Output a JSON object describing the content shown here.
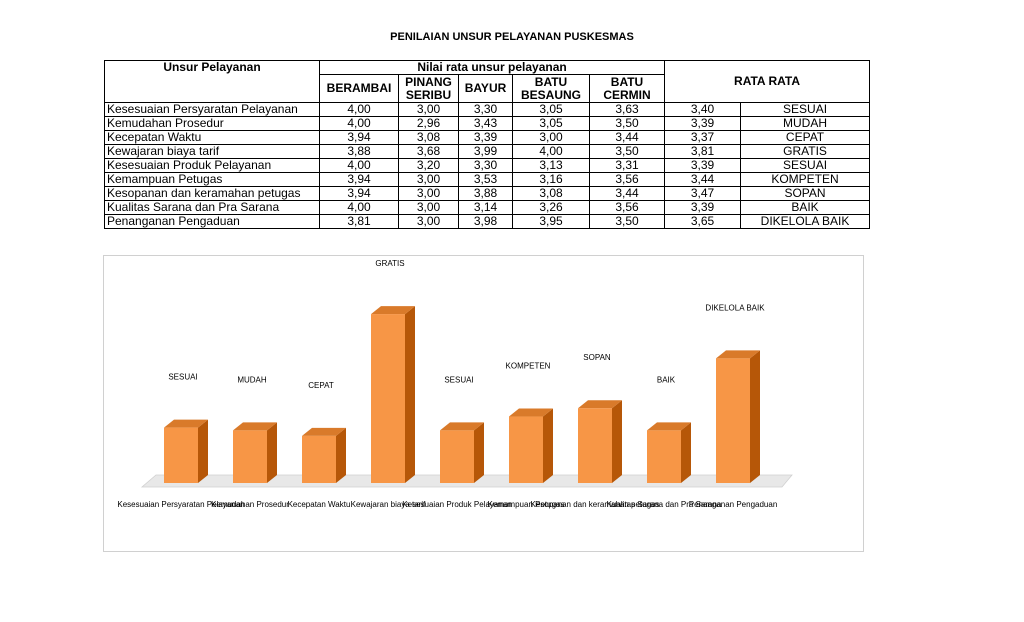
{
  "title": "PENILAIAN UNSUR PELAYANAN PUSKESMAS",
  "table": {
    "header_unsur": "Unsur Pelayanan",
    "header_group": "Nilai rata unsur pelayanan",
    "header_rata": "RATA RATA",
    "columns": [
      "BERAMBAI",
      "PINANG SERIBU",
      "BAYUR",
      "BATU BESAUNG",
      "BATU CERMIN"
    ],
    "rows": [
      {
        "name": "Kesesuaian Persyaratan Pelayanan",
        "values": [
          "4,00",
          "3,00",
          "3,30",
          "3,05",
          "3,63"
        ],
        "avg": "3,40",
        "label": "SESUAI"
      },
      {
        "name": "Kemudahan Prosedur",
        "values": [
          "4,00",
          "2,96",
          "3,43",
          "3,05",
          "3,50"
        ],
        "avg": "3,39",
        "label": "MUDAH"
      },
      {
        "name": "Kecepatan Waktu",
        "values": [
          "3,94",
          "3,08",
          "3,39",
          "3,00",
          "3,44"
        ],
        "avg": "3,37",
        "label": "CEPAT"
      },
      {
        "name": "Kewajaran biaya tarif",
        "values": [
          "3,88",
          "3,68",
          "3,99",
          "4,00",
          "3,50"
        ],
        "avg": "3,81",
        "label": "GRATIS"
      },
      {
        "name": "Kesesuaian Produk Pelayanan",
        "values": [
          "4,00",
          "3,20",
          "3,30",
          "3,13",
          "3,31"
        ],
        "avg": "3,39",
        "label": "SESUAI"
      },
      {
        "name": "Kemampuan Petugas",
        "values": [
          "3,94",
          "3,00",
          "3,53",
          "3,16",
          "3,56"
        ],
        "avg": "3,44",
        "label": "KOMPETEN"
      },
      {
        "name": "Kesopanan dan keramahan petugas",
        "values": [
          "3,94",
          "3,00",
          "3,88",
          "3,08",
          "3,44"
        ],
        "avg": "3,47",
        "label": "SOPAN"
      },
      {
        "name": "Kualitas Sarana dan Pra Sarana",
        "values": [
          "4,00",
          "3,00",
          "3,14",
          "3,26",
          "3,56"
        ],
        "avg": "3,39",
        "label": "BAIK"
      },
      {
        "name": "Penanganan Pengaduan",
        "values": [
          "3,81",
          "3,00",
          "3,98",
          "3,95",
          "3,50"
        ],
        "avg": "3,65",
        "label": "DIKELOLA BAIK"
      }
    ]
  },
  "chart_data": {
    "type": "bar",
    "categories": [
      "Kesesuaian Persyaratan Pelayanan",
      "Kemudahan Prosedur",
      "Kecepatan Waktu",
      "Kewajaran biaya tarif",
      "Kesesuaian Produk Pelayanan",
      "Kemampuan Petugas",
      "Kesopanan dan keramahan petugas",
      "Kualitas Sarana dan Pra Sarana",
      "Penanganan Pengaduan"
    ],
    "values": [
      3.4,
      3.39,
      3.37,
      3.81,
      3.39,
      3.44,
      3.47,
      3.39,
      3.65
    ],
    "data_labels": [
      "SESUAI",
      "MUDAH",
      "CEPAT",
      "GRATIS",
      "SESUAI",
      "KOMPETEN",
      "SOPAN",
      "BAIK",
      "DIKELOLA BAIK"
    ],
    "title": "",
    "xlabel": "",
    "ylabel": "",
    "ylim": [
      3.2,
      3.85
    ],
    "grid": false,
    "legend": "none",
    "colors": {
      "front": "#f79646",
      "side": "#b65708",
      "top": "#d97a2a",
      "floor": "#e8e8e8"
    }
  }
}
